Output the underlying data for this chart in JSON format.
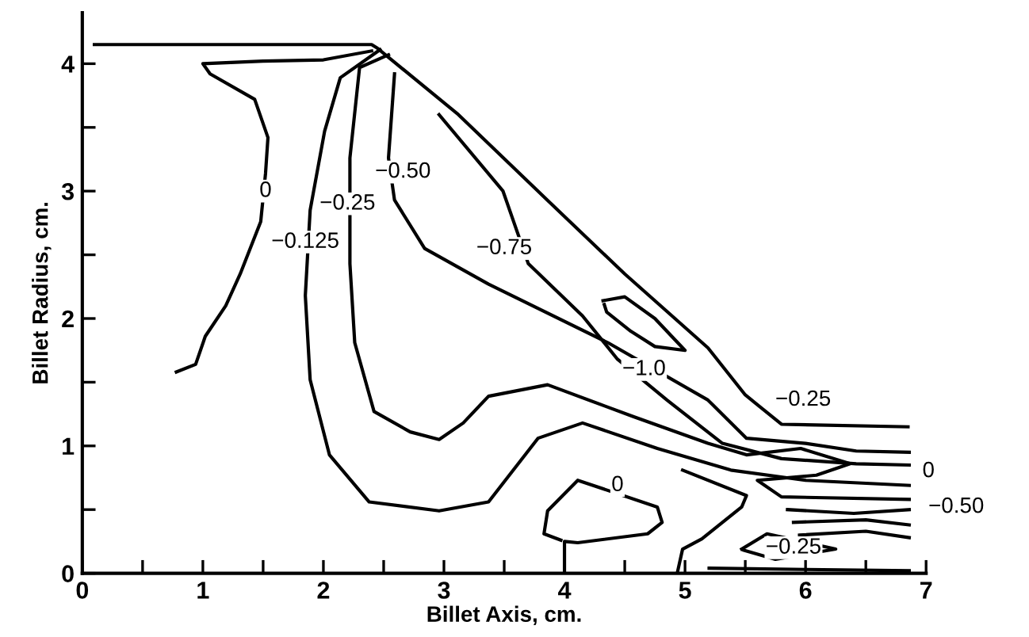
{
  "chart_data": {
    "type": "line",
    "xlabel": "Billet Axis, cm.",
    "ylabel": "Billet Radius, cm.",
    "xlim": [
      0,
      7
    ],
    "ylim": [
      0,
      4.4
    ],
    "xticks": [
      0,
      {
        "value": 0.5,
        "label": null
      },
      1,
      {
        "value": 1.5,
        "label": null
      },
      2,
      {
        "value": 2.5,
        "label": null
      },
      3,
      {
        "value": 3.5,
        "label": null
      },
      4,
      {
        "value": 4.5,
        "label": null
      },
      5,
      {
        "value": 5.5,
        "label": null
      },
      6,
      {
        "value": 6.5,
        "label": null
      },
      7
    ],
    "yticks": [
      0,
      {
        "value": 0.5,
        "label": null
      },
      1,
      {
        "value": 1.5,
        "label": null
      },
      2,
      {
        "value": 2.5,
        "label": null
      },
      3,
      {
        "value": 3.5,
        "label": null
      },
      4
    ],
    "grid": false,
    "legend": false,
    "marker": "none",
    "line_style": "solid",
    "series": [
      {
        "color": "#000000",
        "x": [
          0.1,
          2.4,
          2.45,
          3.12,
          4.0,
          4.5,
          5.19,
          5.5,
          5.8,
          6.85
        ],
        "values": [
          4.15,
          4.15,
          4.12,
          3.6,
          2.8,
          2.35,
          1.77,
          1.4,
          1.17,
          1.15
        ]
      },
      {
        "color": "#000000",
        "x": [
          2.4,
          2.0,
          1.5,
          1.0,
          1.06,
          1.43,
          1.54,
          1.52,
          1.48,
          1.31,
          1.19,
          1.02,
          0.94,
          0.78
        ],
        "values": [
          4.1,
          4.03,
          4.02,
          4.0,
          3.92,
          3.72,
          3.42,
          3.14,
          2.76,
          2.35,
          2.1,
          1.86,
          1.64,
          1.58
        ]
      },
      {
        "color": "#000000",
        "x": [
          2.47,
          2.14,
          2.01,
          1.89,
          1.85,
          1.89,
          2.05,
          2.38,
          2.96,
          3.37,
          3.78,
          4.15,
          4.77,
          5.38,
          6.0,
          6.86
        ],
        "values": [
          4.11,
          3.89,
          3.47,
          2.85,
          2.18,
          1.52,
          0.93,
          0.56,
          0.49,
          0.56,
          1.06,
          1.18,
          0.98,
          0.81,
          0.73,
          0.69
        ]
      },
      {
        "color": "#000000",
        "x": [
          2.54,
          2.3,
          2.22,
          2.22,
          2.26,
          2.42,
          2.72,
          2.96,
          3.16,
          3.37,
          3.86,
          4.57,
          5.19,
          5.51,
          5.96,
          6.37,
          6.09,
          5.6,
          5.8,
          6.86
        ],
        "values": [
          4.07,
          3.97,
          3.26,
          2.43,
          1.81,
          1.27,
          1.11,
          1.05,
          1.18,
          1.39,
          1.48,
          1.23,
          1.02,
          0.93,
          0.98,
          0.86,
          0.77,
          0.73,
          0.6,
          0.58
        ]
      },
      {
        "color": "#000000",
        "x": [
          2.59,
          2.54,
          2.59,
          2.84,
          3.37,
          4.36,
          5.19,
          5.51,
          6.0,
          6.42,
          6.86
        ],
        "values": [
          3.92,
          3.26,
          2.93,
          2.55,
          2.27,
          1.81,
          1.36,
          1.06,
          1.02,
          0.96,
          0.95
        ]
      },
      {
        "color": "#000000",
        "x": [
          2.96,
          3.49,
          3.7,
          4.15,
          4.44,
          4.85,
          5.31,
          5.8,
          6.42,
          6.86
        ],
        "values": [
          3.6,
          3.0,
          2.43,
          2.02,
          1.68,
          1.36,
          1.02,
          0.9,
          0.86,
          0.85
        ]
      },
      {
        "color": "#000000",
        "x": [
          4.32,
          4.5,
          4.75,
          5.0,
          4.75,
          4.55,
          4.35,
          4.33
        ],
        "values": [
          2.14,
          2.17,
          2.0,
          1.75,
          1.78,
          1.9,
          2.05,
          2.11
        ]
      },
      {
        "color": "#000000",
        "x": [
          4.0,
          4.0,
          4.11,
          4.69,
          4.81,
          4.77,
          4.11,
          3.86,
          3.83,
          3.97
        ],
        "values": [
          0.0,
          0.25,
          0.24,
          0.31,
          0.4,
          0.52,
          0.73,
          0.49,
          0.31,
          0.26
        ]
      },
      {
        "color": "#000000",
        "x": [
          5.47,
          5.68,
          6.25,
          5.75,
          5.49
        ],
        "values": [
          0.19,
          0.31,
          0.19,
          0.11,
          0.18
        ]
      },
      {
        "color": "#000000",
        "x": [
          4.94,
          4.98,
          5.14,
          5.47,
          5.51,
          4.98
        ],
        "values": [
          0.02,
          0.19,
          0.27,
          0.52,
          0.61,
          0.81
        ]
      },
      {
        "color": "#000000",
        "x": [
          5.85,
          6.4,
          6.86
        ],
        "values": [
          0.5,
          0.47,
          0.5
        ]
      },
      {
        "color": "#000000",
        "x": [
          5.9,
          6.5,
          6.86
        ],
        "values": [
          0.4,
          0.42,
          0.38
        ]
      },
      {
        "color": "#000000",
        "x": [
          5.95,
          6.5,
          6.86
        ],
        "values": [
          0.3,
          0.33,
          0.28
        ]
      },
      {
        "color": "#000000",
        "x": [
          5.2,
          6.0,
          6.86
        ],
        "values": [
          0.04,
          0.03,
          0.02
        ]
      }
    ],
    "annotations": [
      {
        "text": "0",
        "x": 1.52,
        "y": 3.0
      },
      {
        "text": "−0.125",
        "x": 1.85,
        "y": 2.6
      },
      {
        "text": "−0.25",
        "x": 2.2,
        "y": 2.9
      },
      {
        "text": "−0.50",
        "x": 2.66,
        "y": 3.15
      },
      {
        "text": "−0.75",
        "x": 3.5,
        "y": 2.55
      },
      {
        "text": "−1.0",
        "x": 4.66,
        "y": 1.6
      },
      {
        "text": "−0.25",
        "x": 5.98,
        "y": 1.36
      },
      {
        "text": "0",
        "x": 4.44,
        "y": 0.69
      },
      {
        "text": "0",
        "x": 7.02,
        "y": 0.8
      },
      {
        "text": "−0.50",
        "x": 7.25,
        "y": 0.52
      },
      {
        "text": "−0.25",
        "x": 5.9,
        "y": 0.2
      }
    ]
  }
}
